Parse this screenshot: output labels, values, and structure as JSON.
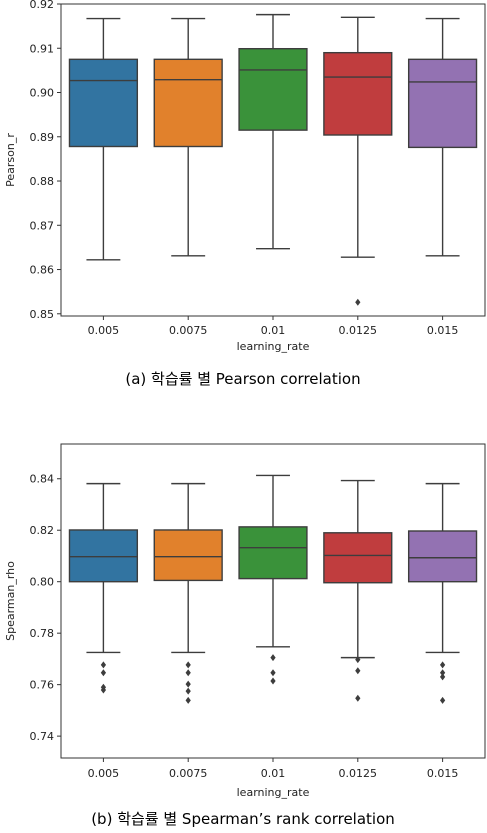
{
  "chart_data": [
    {
      "type": "box",
      "caption": "(a) 학습률 별 Pearson correlation",
      "xlabel": "learning_rate",
      "ylabel": "Pearson_r",
      "categories": [
        "0.005",
        "0.0075",
        "0.01",
        "0.0125",
        "0.015"
      ],
      "ylim": [
        0.8495,
        0.92
      ],
      "yticks": [
        "0.85",
        "0.86",
        "0.87",
        "0.88",
        "0.89",
        "0.90",
        "0.91",
        "0.92"
      ],
      "ytick_values": [
        0.85,
        0.86,
        0.87,
        0.88,
        0.89,
        0.9,
        0.91,
        0.92
      ],
      "grid": false,
      "series": [
        {
          "whisker_low": 0.8622,
          "q1": 0.8878,
          "median": 0.9027,
          "q3": 0.9075,
          "whisker_high": 0.9167,
          "outliers": [],
          "color": "#3274a1"
        },
        {
          "whisker_low": 0.8631,
          "q1": 0.8878,
          "median": 0.9029,
          "q3": 0.9075,
          "whisker_high": 0.9167,
          "outliers": [],
          "color": "#e1812c"
        },
        {
          "whisker_low": 0.8647,
          "q1": 0.8915,
          "median": 0.9051,
          "q3": 0.9099,
          "whisker_high": 0.9176,
          "outliers": [],
          "color": "#3a923a"
        },
        {
          "whisker_low": 0.8628,
          "q1": 0.8904,
          "median": 0.9035,
          "q3": 0.909,
          "whisker_high": 0.917,
          "outliers": [
            0.8526
          ],
          "color": "#c03d3e"
        },
        {
          "whisker_low": 0.8631,
          "q1": 0.8876,
          "median": 0.9024,
          "q3": 0.9075,
          "whisker_high": 0.9167,
          "outliers": [],
          "color": "#9372b2"
        }
      ]
    },
    {
      "type": "box",
      "caption": "(b) 학습률 별 Spearman’s rank correlation",
      "xlabel": "learning_rate",
      "ylabel": "Spearman_rho",
      "categories": [
        "0.005",
        "0.0075",
        "0.01",
        "0.0125",
        "0.015"
      ],
      "ylim": [
        0.7315,
        0.8535
      ],
      "yticks": [
        "0.74",
        "0.76",
        "0.78",
        "0.80",
        "0.82",
        "0.84"
      ],
      "ytick_values": [
        0.74,
        0.76,
        0.78,
        0.8,
        0.82,
        0.84
      ],
      "grid": false,
      "series": [
        {
          "whisker_low": 0.7725,
          "q1": 0.8,
          "median": 0.8097,
          "q3": 0.8201,
          "whisker_high": 0.8381,
          "outliers": [
            0.7677,
            0.7646,
            0.759,
            0.7579
          ],
          "color": "#3274a1"
        },
        {
          "whisker_low": 0.7725,
          "q1": 0.8005,
          "median": 0.8097,
          "q3": 0.8201,
          "whisker_high": 0.8381,
          "outliers": [
            0.7677,
            0.7646,
            0.7602,
            0.7575,
            0.7539
          ],
          "color": "#e1812c"
        },
        {
          "whisker_low": 0.7747,
          "q1": 0.8012,
          "median": 0.8132,
          "q3": 0.8213,
          "whisker_high": 0.8413,
          "outliers": [
            0.7705,
            0.7646,
            0.7614
          ],
          "color": "#3a923a"
        },
        {
          "whisker_low": 0.7705,
          "q1": 0.7996,
          "median": 0.8102,
          "q3": 0.819,
          "whisker_high": 0.8393,
          "outliers": [
            0.7697,
            0.7654,
            0.7547
          ],
          "color": "#c03d3e"
        },
        {
          "whisker_low": 0.7725,
          "q1": 0.8,
          "median": 0.8093,
          "q3": 0.8197,
          "whisker_high": 0.8381,
          "outliers": [
            0.7677,
            0.7646,
            0.763,
            0.7539
          ],
          "color": "#9372b2"
        }
      ]
    }
  ]
}
